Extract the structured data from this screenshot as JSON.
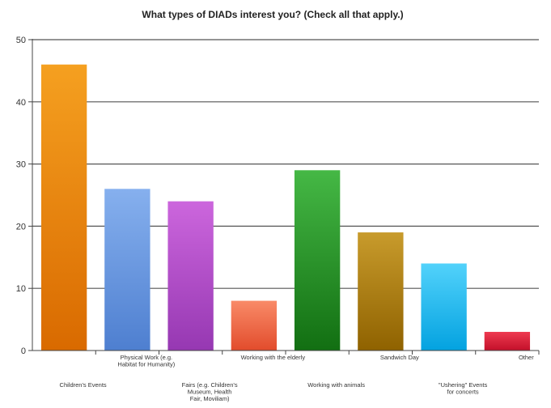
{
  "chart_data": {
    "type": "bar",
    "title": "What types of DIADs interest you? (Check all that apply.)",
    "xlabel": "",
    "ylabel": "",
    "ylim": [
      0,
      50
    ],
    "yticks": [
      "0",
      "10",
      "20",
      "30",
      "40",
      "50"
    ],
    "grid": true,
    "legend": "none",
    "categories": [
      [
        "Children's Events"
      ],
      [
        "Physical Work (e.g.",
        "Habitat for Humanity)"
      ],
      [
        "Fairs (e.g. Children's",
        "Museum, Health",
        "Fair, Moviliam)"
      ],
      [
        "Working with the elderly"
      ],
      [
        "Working with animals"
      ],
      [
        "Sandwich Day"
      ],
      [
        "\"Ushering\" Events",
        "for concerts"
      ],
      [
        "Other"
      ]
    ],
    "values": [
      46,
      26,
      24,
      8,
      29,
      19,
      14,
      3
    ],
    "colors": [
      [
        "#f5a020",
        "#d96a00"
      ],
      [
        "#86b0ee",
        "#4e7fd0"
      ],
      [
        "#cc66dd",
        "#9638b2"
      ],
      [
        "#f98a68",
        "#e24c2c"
      ],
      [
        "#45b845",
        "#126f12"
      ],
      [
        "#c89b2c",
        "#8f6200"
      ],
      [
        "#52d2fb",
        "#03a2e0"
      ],
      [
        "#ee3a50",
        "#c3102a"
      ]
    ]
  }
}
